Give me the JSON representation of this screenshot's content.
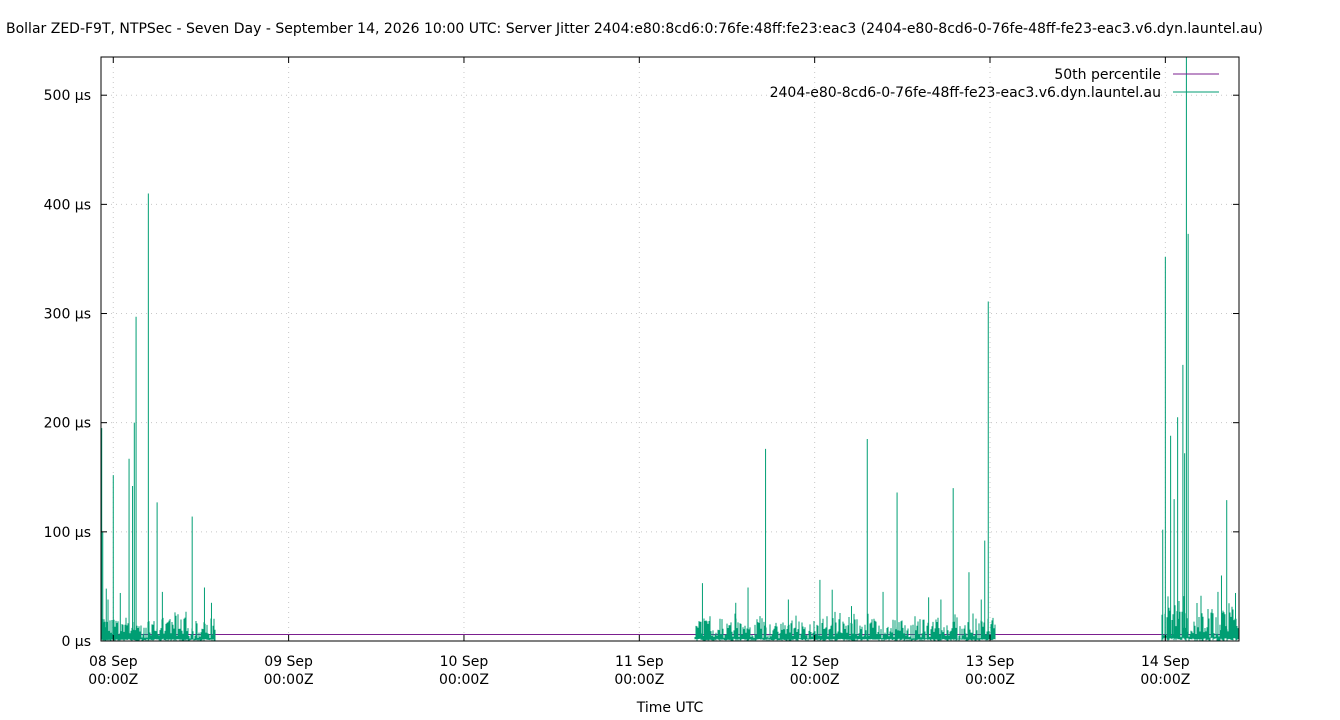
{
  "chart_data": {
    "type": "line",
    "title": "Bollar ZED-F9T, NTPSec - Seven Day - September 14, 2026 10:00 UTC: Server Jitter 2404:e80:8cd6:0:76fe:48ff:fe23:eac3 (2404-e80-8cd6-0-76fe-48ff-fe23-eac3.v6.dyn.launtel.au)",
    "xlabel": "Time UTC",
    "ylabel": "",
    "x_unit": "days since 08 Sep 00:00Z",
    "xlim": [
      -0.07,
      6.42
    ],
    "ylim": [
      0,
      535
    ],
    "grid": true,
    "legend_position": "top-right",
    "x_ticks": [
      {
        "x": 0,
        "line1": "08 Sep",
        "line2": "00:00Z"
      },
      {
        "x": 1,
        "line1": "09 Sep",
        "line2": "00:00Z"
      },
      {
        "x": 2,
        "line1": "10 Sep",
        "line2": "00:00Z"
      },
      {
        "x": 3,
        "line1": "11 Sep",
        "line2": "00:00Z"
      },
      {
        "x": 4,
        "line1": "12 Sep",
        "line2": "00:00Z"
      },
      {
        "x": 5,
        "line1": "13 Sep",
        "line2": "00:00Z"
      },
      {
        "x": 6,
        "line1": "14 Sep",
        "line2": "00:00Z"
      }
    ],
    "y_ticks": [
      {
        "y": 0,
        "label": "0 µs"
      },
      {
        "y": 100,
        "label": "100 µs"
      },
      {
        "y": 200,
        "label": "200 µs"
      },
      {
        "y": 300,
        "label": "300 µs"
      },
      {
        "y": 400,
        "label": "400 µs"
      },
      {
        "y": 500,
        "label": "500 µs"
      }
    ],
    "series": [
      {
        "name": "50th percentile",
        "color": "#7b1f8f",
        "points": [
          [
            -0.07,
            6
          ],
          [
            6.42,
            6
          ]
        ]
      },
      {
        "name": "2404-e80-8cd6-0-76fe-48ff-fe23-eac3.v6.dyn.launtel.au",
        "color": "#009e73",
        "segments": [
          {
            "start": -0.07,
            "end": 0.58,
            "base_min": 2,
            "base_max": 30,
            "spikes": [
              [
                -0.066,
                195
              ],
              [
                -0.06,
                100
              ],
              [
                -0.04,
                48
              ],
              [
                -0.03,
                38
              ],
              [
                0.0,
                152
              ],
              [
                0.04,
                44
              ],
              [
                0.09,
                167
              ],
              [
                0.11,
                142
              ],
              [
                0.12,
                200
              ],
              [
                0.13,
                297
              ],
              [
                0.2,
                410
              ],
              [
                0.25,
                127
              ],
              [
                0.28,
                45
              ],
              [
                0.45,
                114
              ],
              [
                0.52,
                49
              ],
              [
                0.56,
                35
              ]
            ]
          },
          {
            "start": 3.32,
            "end": 5.03,
            "base_min": 2,
            "base_max": 28,
            "spikes": [
              [
                3.36,
                53
              ],
              [
                3.55,
                35
              ],
              [
                3.62,
                49
              ],
              [
                3.72,
                176
              ],
              [
                3.85,
                38
              ],
              [
                4.03,
                56
              ],
              [
                4.1,
                47
              ],
              [
                4.21,
                32
              ],
              [
                4.3,
                185
              ],
              [
                4.39,
                45
              ],
              [
                4.47,
                136
              ],
              [
                4.65,
                40
              ],
              [
                4.72,
                38
              ],
              [
                4.79,
                140
              ],
              [
                4.88,
                63
              ],
              [
                4.95,
                38
              ],
              [
                4.97,
                92
              ],
              [
                4.99,
                311
              ]
            ]
          },
          {
            "start": 5.98,
            "end": 6.42,
            "base_min": 3,
            "base_max": 45,
            "spikes": [
              [
                5.985,
                102
              ],
              [
                6.0,
                352
              ],
              [
                6.03,
                188
              ],
              [
                6.05,
                130
              ],
              [
                6.07,
                205
              ],
              [
                6.1,
                253
              ],
              [
                6.11,
                172
              ],
              [
                6.12,
                535
              ],
              [
                6.13,
                373
              ],
              [
                6.3,
                45
              ],
              [
                6.32,
                60
              ],
              [
                6.35,
                129
              ],
              [
                6.4,
                44
              ]
            ]
          }
        ]
      }
    ]
  }
}
